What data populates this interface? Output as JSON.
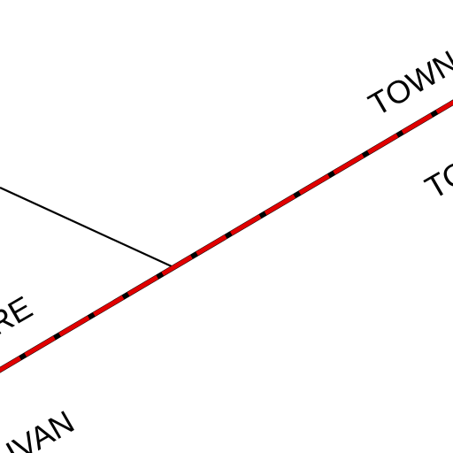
{
  "map": {
    "colors": {
      "background": "#ffffff",
      "boundary_line": "#000000",
      "boundary_highlight": "#e00000",
      "road_line": "#000000"
    },
    "labels": {
      "town_top": "TOWN",
      "town_right": "TO",
      "left_partial": "RE",
      "bottom_partial": "IVAN"
    }
  }
}
